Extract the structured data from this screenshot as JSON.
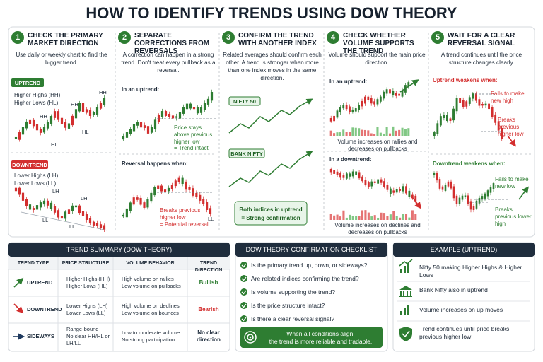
{
  "title": "HOW TO IDENTIFY TRENDS USING DOW THEORY",
  "steps": [
    {
      "number": 1,
      "title": "CHECK THE PRIMARY MARKET DIRECTION",
      "description": "Use daily or weekly chart to find the bigger trend."
    },
    {
      "number": 2,
      "title": "SEPARATE CORRECTIONS FROM REVERSALS",
      "description": "A correction can happen in a strong trend. Don't treat every pullback as a reversal."
    },
    {
      "number": 3,
      "title": "CONFIRM THE TREND WITH ANOTHER INDEX",
      "description": "Related averages should confirm each other. A trend is stronger when more than one index moves in the same direction."
    },
    {
      "number": 4,
      "title": "CHECK WHETHER VOLUME SUPPORTS THE TREND",
      "description": "Volume should support the main price direction."
    },
    {
      "number": 5,
      "title": "WAIT FOR A CLEAR REVERSAL SIGNAL",
      "description": "A trend continues until the price structure changes clearly."
    }
  ],
  "step1": {
    "uptrend": {
      "badge": "UPTREND",
      "labels": [
        "Higher Highs (HH)",
        "Higher Lows (HL)"
      ],
      "annotations": [
        "HH",
        "HH",
        "HH",
        "HL",
        "HL"
      ]
    },
    "downtrend": {
      "badge": "DOWNTREND",
      "labels": [
        "Lower Highs (LH)",
        "Lower Lows (LL)"
      ],
      "annotations": [
        "LH",
        "LH",
        "LL",
        "LL"
      ]
    }
  },
  "step2": {
    "uptrend_heading": "In an uptrend:",
    "uptrend_note": "Price stays above previous higher low",
    "uptrend_result": "= Trend intact",
    "reversal_heading": "Reversal happens when:",
    "reversal_note": "Breaks previous higher low",
    "reversal_result": "= Potential reversal",
    "reversal_annotation": "LL"
  },
  "step3": {
    "index_1": "NIFTY 50",
    "index_2": "BANK NIFTY",
    "confirmation": "Both indices in uptrend",
    "confirmation_result": "= Strong confirmation"
  },
  "step4": {
    "uptrend_heading": "In an uptrend:",
    "uptrend_caption": "Volume increases on rallies and decreases on pullbacks",
    "downtrend_heading": "In a downtrend:",
    "downtrend_caption": "Volume increases on declines and decreases on pullbacks"
  },
  "step5": {
    "uptrend_heading": "Uptrend weakens when:",
    "uptrend_notes": [
      "Fails to make new high",
      "Breaks previous higher low"
    ],
    "downtrend_heading": "Downtrend weakens when:",
    "downtrend_notes": [
      "Fails to make new low",
      "Breaks previous lower high"
    ]
  },
  "table": {
    "title": "TREND SUMMARY (DOW THEORY)",
    "headers": [
      "TREND TYPE",
      "PRICE STRUCTURE",
      "VOLUME BEHAVIOR",
      "TREND DIRECTION"
    ],
    "rows": [
      [
        [
          "UPTREND"
        ],
        [
          "Higher Highs (HH)",
          "Higher Lows (HL)"
        ],
        [
          "High volume on rallies",
          "Low volume on pullbacks"
        ],
        [
          "Bullish"
        ]
      ],
      [
        [
          "DOWNTREND"
        ],
        [
          "Lower Highs (LH)",
          "Lower Lows (LL)"
        ],
        [
          "High volume on declines",
          "Low volume on bounces"
        ],
        [
          "Bearish"
        ]
      ],
      [
        [
          "SIDEWAYS"
        ],
        [
          "Range-bound",
          "No clear HH/HL or",
          "LH/LL"
        ],
        [
          "Low to moderate volume",
          "No strong participation"
        ],
        [
          "No clear",
          "direction"
        ]
      ]
    ]
  },
  "checklist": {
    "title": "DOW THEORY CONFIRMATION CHECKLIST",
    "items": [
      "Is the primary trend up, down, or sideways?",
      "Are related indices confirming the trend?",
      "Is volume supporting the trend?",
      "Is the price structure intact?",
      "Is there a clear reversal signal?"
    ],
    "footer": [
      "When all conditions align,",
      "the trend is more reliable and tradable."
    ]
  },
  "example": {
    "title": "EXAMPLE (UPTREND)",
    "items": [
      "Nifty 50 making Higher Highs & Higher Lows",
      "Bank Nifty also in uptrend",
      "Volume increases on up moves",
      "Trend continues until price breaks previous higher low"
    ]
  }
}
